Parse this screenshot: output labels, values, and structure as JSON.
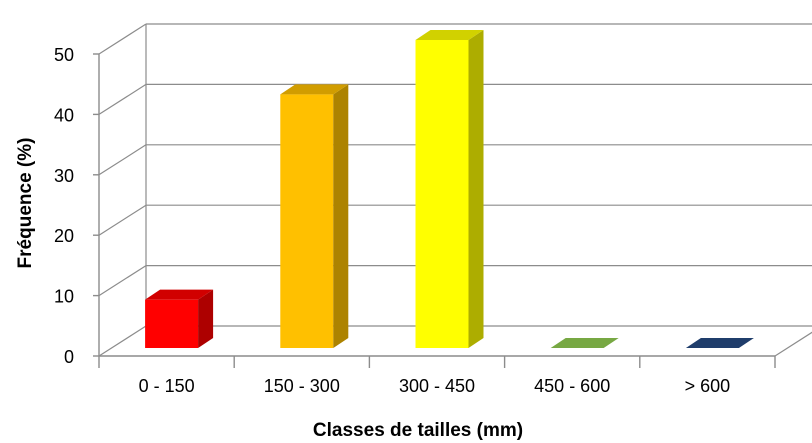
{
  "chart_data": {
    "type": "bar",
    "categories": [
      "0 - 150",
      "150 - 300",
      "300 - 450",
      "450 - 600",
      "> 600"
    ],
    "values": [
      8,
      42,
      51,
      0,
      0
    ],
    "colors": [
      "#ff0000",
      "#ffc000",
      "#ffff00",
      "#77a843",
      "#1f3d6b"
    ],
    "xlabel": "Classes de tailles (mm)",
    "ylabel": "Fréquence (%)",
    "ylim": [
      0,
      50
    ],
    "yticks": [
      0,
      10,
      20,
      30,
      40,
      50
    ],
    "grid": true,
    "style": "3d"
  }
}
